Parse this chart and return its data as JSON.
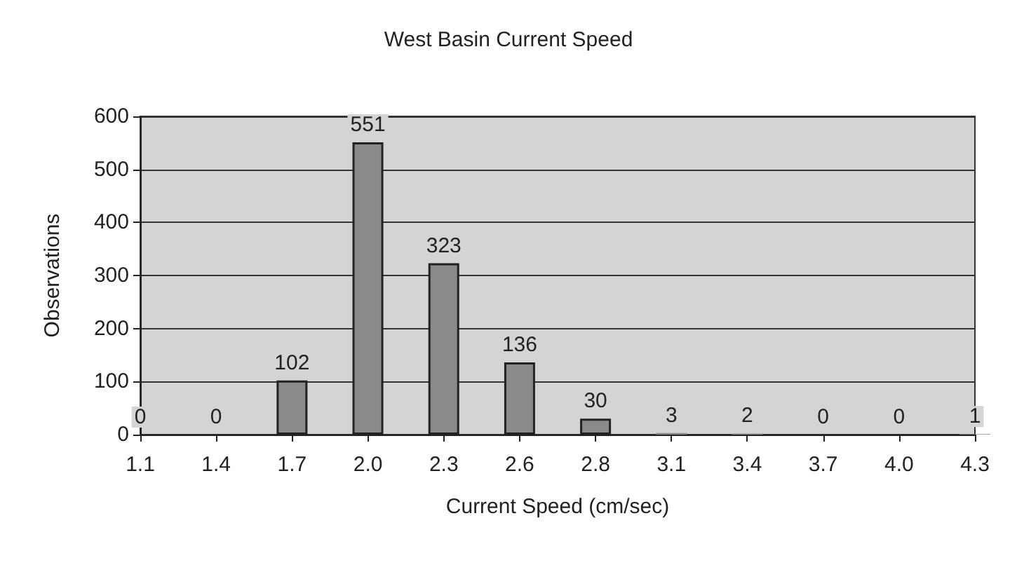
{
  "chart_data": {
    "type": "bar",
    "title": "West Basin Current Speed",
    "xlabel": "Current Speed (cm/sec)",
    "ylabel": "Observations",
    "categories": [
      "1.1",
      "1.4",
      "1.7",
      "2.0",
      "2.3",
      "2.6",
      "2.8",
      "3.1",
      "3.4",
      "3.7",
      "4.0",
      "4.3"
    ],
    "values": [
      0,
      0,
      102,
      551,
      323,
      136,
      30,
      3,
      2,
      0,
      0,
      1
    ],
    "color": "#8a8a8a",
    "ylim": [
      0,
      600
    ],
    "yticks": [
      0,
      100,
      200,
      300,
      400,
      500,
      600
    ],
    "grid": "y",
    "data_labels": true
  }
}
